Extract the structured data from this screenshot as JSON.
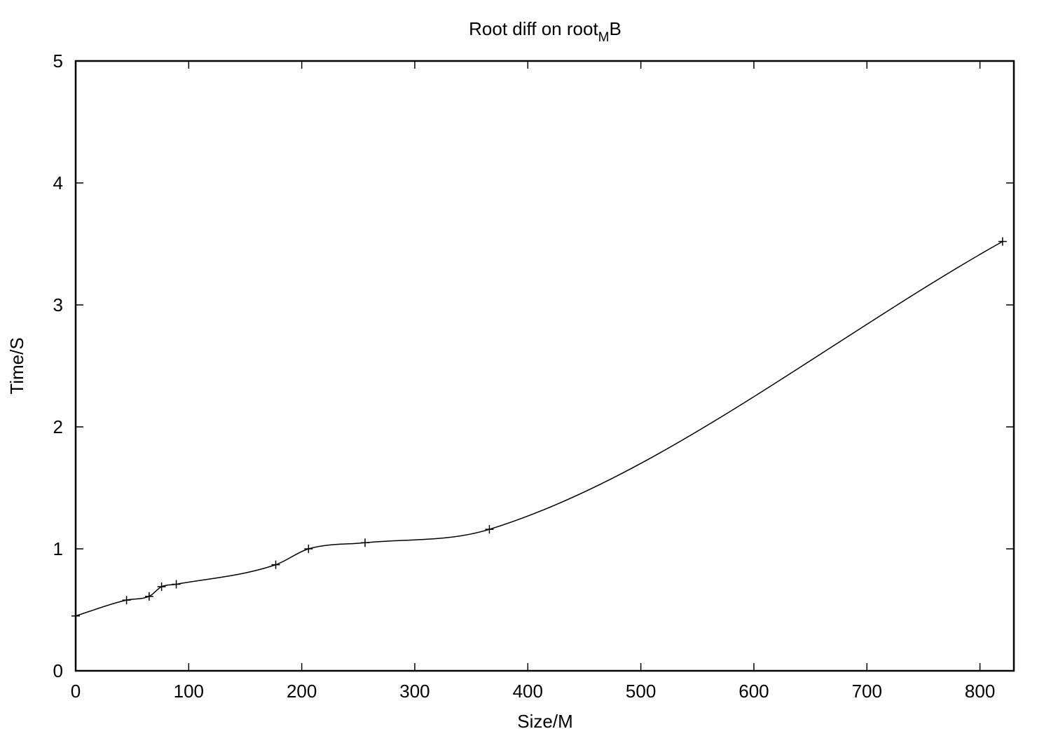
{
  "chart_data": {
    "type": "line",
    "title": {
      "main": "Root diff on root",
      "subscript": "M",
      "suffix": "B"
    },
    "xlabel": "Size/M",
    "ylabel": "Time/S",
    "xlim": [
      0,
      830
    ],
    "ylim": [
      0,
      5
    ],
    "x_ticks": [
      0,
      100,
      200,
      300,
      400,
      500,
      600,
      700,
      800
    ],
    "y_ticks": [
      0,
      1,
      2,
      3,
      4,
      5
    ],
    "x_tick_labels": [
      "0",
      "100",
      "200",
      "300",
      "400",
      "500",
      "600",
      "700",
      "800"
    ],
    "y_tick_labels": [
      "0",
      "1",
      "2",
      "3",
      "4",
      "5"
    ],
    "grid": false,
    "smooth": true,
    "marker": "plus",
    "line_color": "#000000",
    "series": [
      {
        "x": [
          0,
          45,
          65,
          76,
          89,
          177,
          206,
          256,
          366,
          820
        ],
        "y": [
          0.45,
          0.58,
          0.61,
          0.69,
          0.71,
          0.87,
          1.0,
          1.05,
          1.16,
          3.52
        ]
      }
    ]
  }
}
